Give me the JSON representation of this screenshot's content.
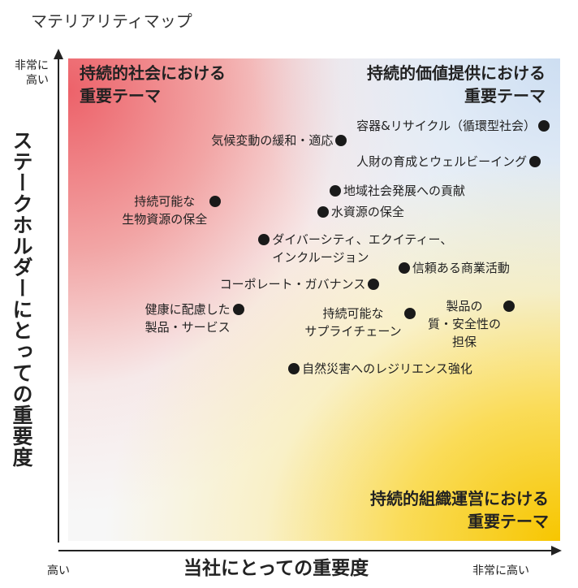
{
  "title": "マテリアリティマップ",
  "chart_data": {
    "type": "scatter",
    "xlabel": "当社にとっての重要度",
    "ylabel": "ステークホルダーにとっての重要度",
    "x_low_label": "高い",
    "x_high_label": "非常に高い",
    "y_high_label": [
      "非常に",
      "高い"
    ],
    "quadrants": {
      "top_left": [
        "持続的社会における",
        "重要テーマ"
      ],
      "top_right": [
        "持続的価値提供における",
        "重要テーマ"
      ],
      "bottom_right": [
        "持続的組織運営における",
        "重要テーマ"
      ]
    },
    "points": [
      {
        "label": [
          "容器&リサイクル（循環型社会）"
        ],
        "x": 96.7,
        "y": 86.0,
        "side": "left"
      },
      {
        "label": [
          "気候変動の緩和・適応"
        ],
        "x": 55.5,
        "y": 83.0,
        "side": "left"
      },
      {
        "label": [
          "人財の育成とウェルビーイング"
        ],
        "x": 94.9,
        "y": 78.7,
        "side": "left"
      },
      {
        "label": [
          "地域社会発展への貢献"
        ],
        "x": 54.3,
        "y": 72.5,
        "side": "right"
      },
      {
        "label": [
          "持続可能な",
          "生物資源の保全"
        ],
        "x": 29.9,
        "y": 70.4,
        "side": "left"
      },
      {
        "label": [
          "水資源の保全"
        ],
        "x": 51.8,
        "y": 68.1,
        "side": "right"
      },
      {
        "label": [
          "ダイバーシティ、エクイティー、",
          "インクルージョン"
        ],
        "x": 39.8,
        "y": 62.4,
        "side": "right"
      },
      {
        "label": [
          "信頼ある商業活動"
        ],
        "x": 68.3,
        "y": 56.6,
        "side": "right"
      },
      {
        "label": [
          "コーポレート・ガバナンス"
        ],
        "x": 62.1,
        "y": 53.2,
        "side": "left"
      },
      {
        "label": [
          "製品の",
          "質・安全性の",
          "担保"
        ],
        "x": 89.6,
        "y": 48.7,
        "side": "left"
      },
      {
        "label": [
          "健康に配慮した",
          "製品・サービス"
        ],
        "x": 34.6,
        "y": 48.0,
        "side": "left"
      },
      {
        "label": [
          "持続可能な",
          "サプライチェーン"
        ],
        "x": 69.4,
        "y": 47.1,
        "side": "left"
      },
      {
        "label": [
          "自然災害へのレジリエンス強化"
        ],
        "x": 45.9,
        "y": 35.7,
        "side": "right"
      }
    ]
  }
}
